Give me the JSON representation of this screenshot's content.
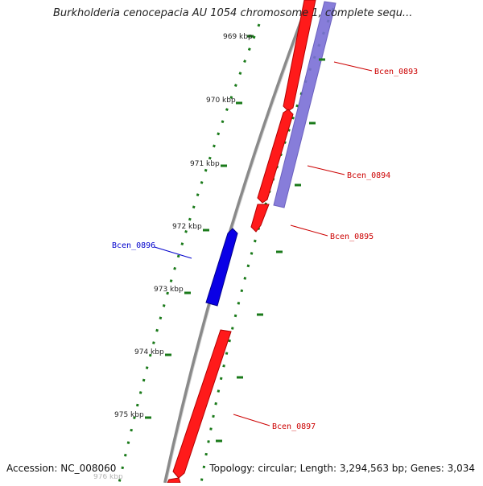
{
  "title": "Burkholderia cenocepacia AU 1054 chromosome 1, complete sequ...",
  "footer": {
    "accession": "Accession: NC_008060",
    "summary": "Topology: circular; Length: 3,294,563 bp; Genes: 3,034"
  },
  "ruler": {
    "ticks": [
      {
        "label": "969 kbp"
      },
      {
        "label": "970 kbp"
      },
      {
        "label": "971 kbp"
      },
      {
        "label": "972 kbp"
      },
      {
        "label": "973 kbp"
      },
      {
        "label": "974 kbp"
      },
      {
        "label": "975 kbp"
      },
      {
        "label": "976 kbp"
      }
    ]
  },
  "genes": [
    {
      "name": "Bcen_0893",
      "color": "#cc0000"
    },
    {
      "name": "Bcen_0894",
      "color": "#cc0000"
    },
    {
      "name": "Bcen_0895",
      "color": "#cc0000"
    },
    {
      "name": "Bcen_0896",
      "color": "#0000cc"
    },
    {
      "name": "Bcen_0897",
      "color": "#cc0000"
    }
  ],
  "colors": {
    "forward_feature": "#ff0000",
    "reverse_feature": "#0000ee",
    "blast_hit": "#7b6fd6",
    "backbone": "#8a8a8a",
    "ruler": "#1a7a1a"
  }
}
